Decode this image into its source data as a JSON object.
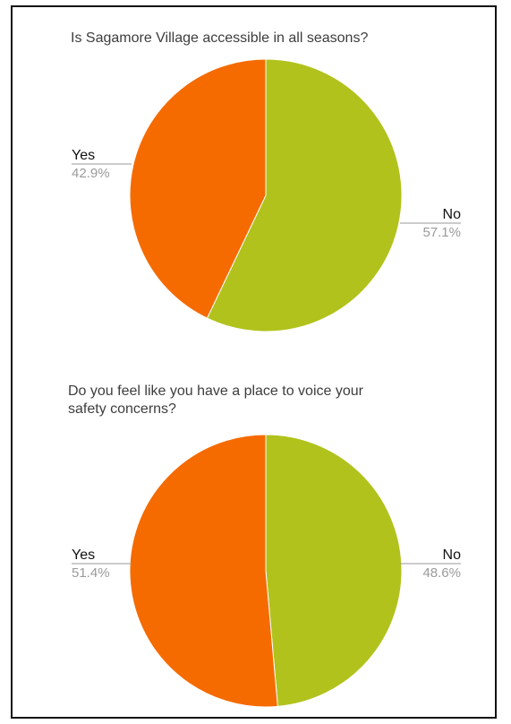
{
  "chart_data": [
    {
      "type": "pie",
      "title": "Is Sagamore Village accessible in all seasons?",
      "categories": [
        "No",
        "Yes"
      ],
      "values": [
        57.1,
        42.9
      ],
      "labels": [
        "57.1%",
        "42.9%"
      ],
      "colors": [
        "#b1c21c",
        "#f56b00"
      ],
      "legend": "none"
    },
    {
      "type": "pie",
      "title": "Do you feel like you have a place to voice your safety concerns?",
      "title_lines": [
        "Do you feel like you have a place to voice your",
        "safety concerns?"
      ],
      "categories": [
        "No",
        "Yes"
      ],
      "values": [
        48.6,
        51.4
      ],
      "labels": [
        "48.6%",
        "51.4%"
      ],
      "colors": [
        "#b1c21c",
        "#f56b00"
      ],
      "legend": "none"
    }
  ]
}
